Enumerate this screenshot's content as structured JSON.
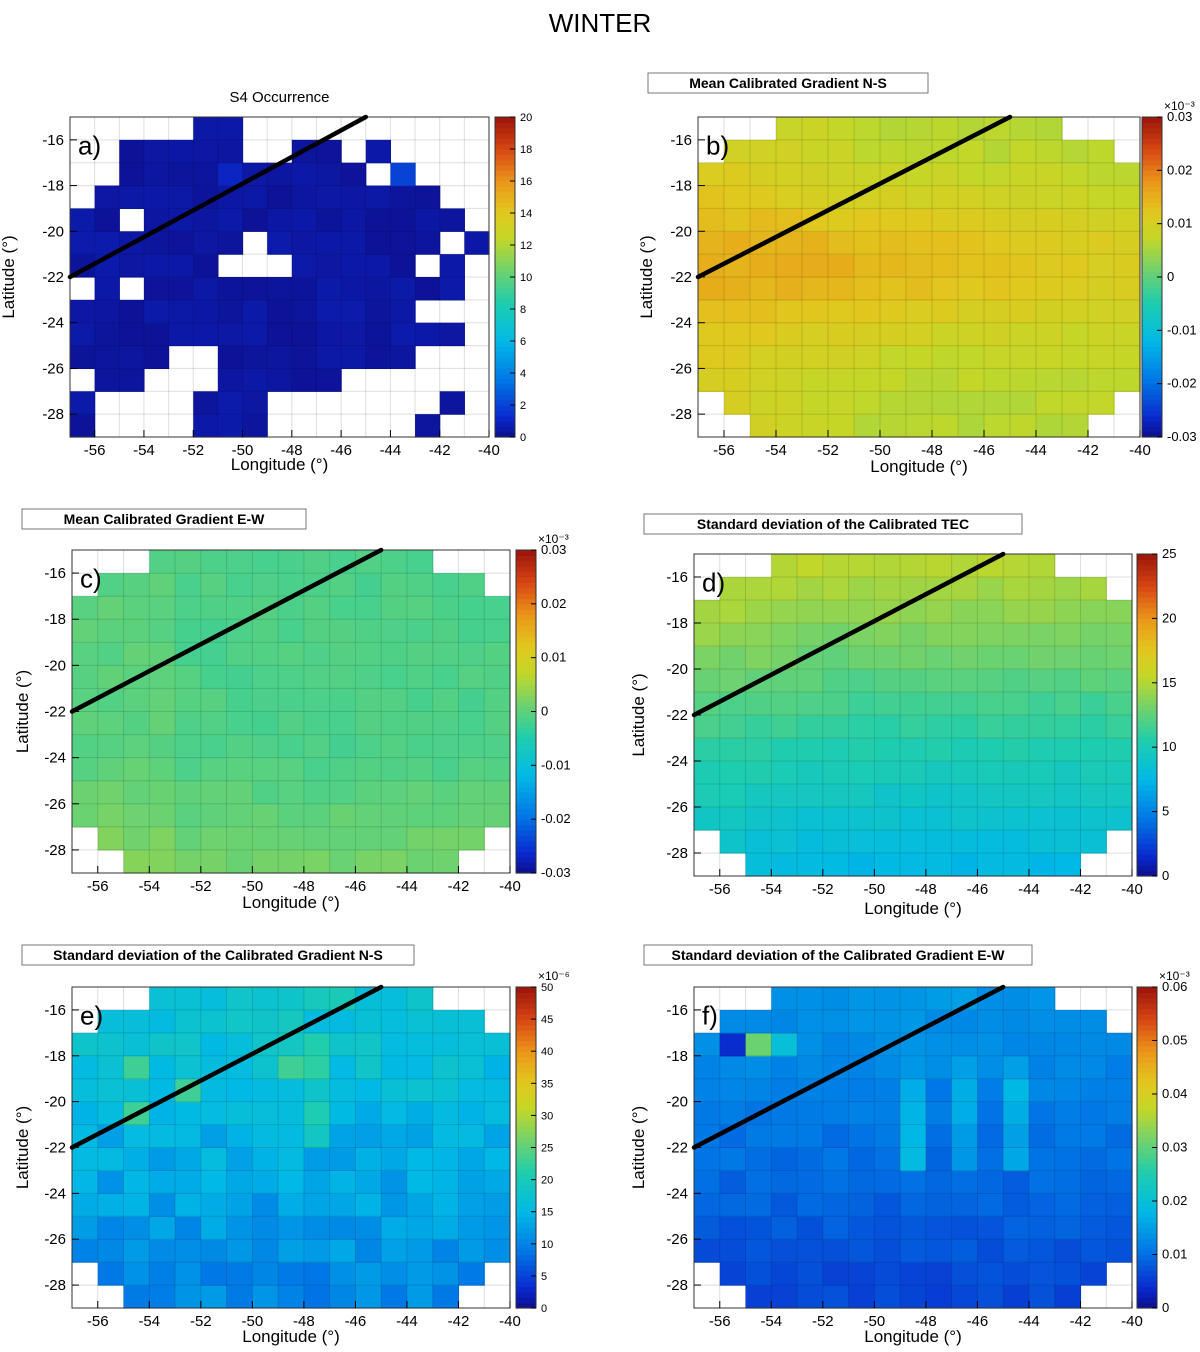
{
  "figure_title": "WINTER",
  "chart_data": [
    {
      "type": "heatmap",
      "panel": "a)",
      "title": "S4 Occurrence",
      "title_style": "plain",
      "xlabel": "Longitude (°)",
      "ylabel": "Latitude (°)",
      "xlim": [
        -57,
        -40
      ],
      "ylim": [
        -29,
        -15
      ],
      "x_ticks": [
        -56,
        -54,
        -52,
        -50,
        -48,
        -46,
        -44,
        -42,
        -40
      ],
      "y_ticks": [
        -16,
        -18,
        -20,
        -22,
        -24,
        -26,
        -28
      ],
      "colorbar": {
        "min": 0,
        "max": 20,
        "ticks": [
          0,
          2,
          4,
          6,
          8,
          10,
          12,
          14,
          16,
          18,
          20
        ],
        "multiplier": ""
      },
      "line": {
        "x": [
          -57,
          -45
        ],
        "y": [
          -22,
          -15
        ]
      },
      "field": "s4",
      "value_range_note": "mostly 0-1, max ~2"
    },
    {
      "type": "heatmap",
      "panel": "b)",
      "title": "Mean Calibrated Gradient N-S",
      "title_style": "boxed",
      "xlabel": "Longitude (°)",
      "ylabel": "Latitude (°)",
      "xlim": [
        -57,
        -40
      ],
      "ylim": [
        -29,
        -15
      ],
      "x_ticks": [
        -56,
        -54,
        -52,
        -50,
        -48,
        -46,
        -44,
        -42,
        -40
      ],
      "y_ticks": [
        -16,
        -18,
        -20,
        -22,
        -24,
        -26,
        -28
      ],
      "colorbar": {
        "min": -0.03,
        "max": 0.03,
        "ticks": [
          -0.03,
          -0.02,
          -0.01,
          0,
          0.01,
          0.02,
          0.03
        ],
        "multiplier": "×10⁻³"
      },
      "line": {
        "x": [
          -57,
          -45
        ],
        "y": [
          -22,
          -15
        ]
      },
      "field": "grad_ns",
      "value_range_note": "about 0.005 to 0.016"
    },
    {
      "type": "heatmap",
      "panel": "c)",
      "title": "Mean Calibrated Gradient E-W",
      "title_style": "boxed",
      "xlabel": "Longitude (°)",
      "ylabel": "Latitude (°)",
      "xlim": [
        -57,
        -40
      ],
      "ylim": [
        -29,
        -15
      ],
      "x_ticks": [
        -56,
        -54,
        -52,
        -50,
        -48,
        -46,
        -44,
        -42,
        -40
      ],
      "y_ticks": [
        -16,
        -18,
        -20,
        -22,
        -24,
        -26,
        -28
      ],
      "colorbar": {
        "min": -0.03,
        "max": 0.03,
        "ticks": [
          -0.03,
          -0.02,
          -0.01,
          0,
          0.01,
          0.02,
          0.03
        ],
        "multiplier": "×10⁻³"
      },
      "line": {
        "x": [
          -57,
          -45
        ],
        "y": [
          -22,
          -15
        ]
      },
      "field": "grad_ew",
      "value_range_note": "about -0.004 to 0.005"
    },
    {
      "type": "heatmap",
      "panel": "d)",
      "title": "Standard deviation of the Calibrated TEC",
      "title_style": "boxed",
      "xlabel": "Longitude (°)",
      "ylabel": "Latitude (°)",
      "xlim": [
        -57,
        -40
      ],
      "ylim": [
        -29,
        -15
      ],
      "x_ticks": [
        -56,
        -54,
        -52,
        -50,
        -48,
        -46,
        -44,
        -42,
        -40
      ],
      "y_ticks": [
        -16,
        -18,
        -20,
        -22,
        -24,
        -26,
        -28
      ],
      "colorbar": {
        "min": 0,
        "max": 25,
        "ticks": [
          0,
          5,
          10,
          15,
          20,
          25
        ],
        "multiplier": ""
      },
      "line": {
        "x": [
          -57,
          -45
        ],
        "y": [
          -22,
          -15
        ]
      },
      "field": "std_tec",
      "value_range_note": "about 7 at -28 to 15 at -16"
    },
    {
      "type": "heatmap",
      "panel": "e)",
      "title": "Standard deviation of the Calibrated Gradient N-S",
      "title_style": "boxed",
      "xlabel": "Longitude (°)",
      "ylabel": "Latitude (°)",
      "xlim": [
        -57,
        -40
      ],
      "ylim": [
        -29,
        -15
      ],
      "x_ticks": [
        -56,
        -54,
        -52,
        -50,
        -48,
        -46,
        -44,
        -42,
        -40
      ],
      "y_ticks": [
        -16,
        -18,
        -20,
        -22,
        -24,
        -26,
        -28
      ],
      "colorbar": {
        "min": 0,
        "max": 50,
        "ticks": [
          0,
          5,
          10,
          15,
          20,
          25,
          30,
          35,
          40,
          45,
          50
        ],
        "multiplier": "×10⁻⁶"
      },
      "line": {
        "x": [
          -57,
          -45
        ],
        "y": [
          -22,
          -15
        ]
      },
      "field": "std_ns",
      "value_range_note": "about 6 to 24"
    },
    {
      "type": "heatmap",
      "panel": "f)",
      "title": "Standard deviation of the Calibrated Gradient E-W",
      "title_style": "boxed",
      "xlabel": "Longitude (°)",
      "ylabel": "Latitude (°)",
      "xlim": [
        -57,
        -40
      ],
      "ylim": [
        -29,
        -15
      ],
      "x_ticks": [
        -56,
        -54,
        -52,
        -50,
        -48,
        -46,
        -44,
        -42,
        -40
      ],
      "y_ticks": [
        -16,
        -18,
        -20,
        -22,
        -24,
        -26,
        -28
      ],
      "colorbar": {
        "min": 0,
        "max": 0.06,
        "ticks": [
          0,
          0.01,
          0.02,
          0.03,
          0.04,
          0.05,
          0.06
        ],
        "multiplier": "×10⁻³"
      },
      "line": {
        "x": [
          -57,
          -45
        ],
        "y": [
          -22,
          -15
        ]
      },
      "field": "std_ew",
      "value_range_note": "about 0.004 to 0.02, one cell ~0.03 at -55,-17.5"
    }
  ]
}
